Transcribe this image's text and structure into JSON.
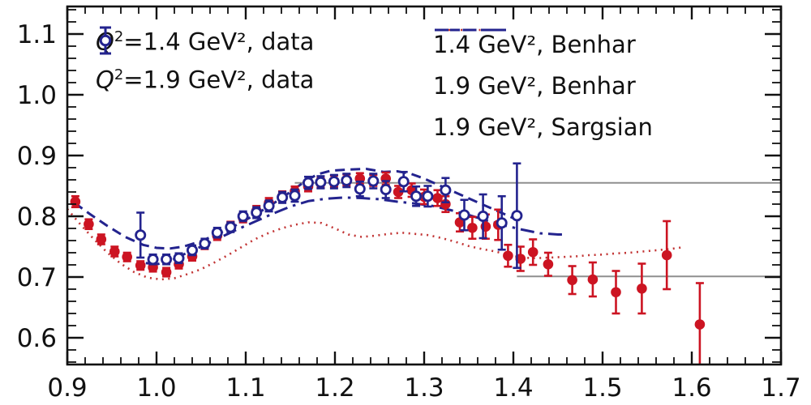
{
  "chart_data": {
    "type": "scatter",
    "title": "",
    "xlabel": "",
    "ylabel": "",
    "grid": false,
    "axes": {
      "xlim": [
        0.9,
        1.7
      ],
      "ylim": [
        0.556,
        1.145
      ],
      "x_tick_values": [
        0.9,
        1.0,
        1.1,
        1.2,
        1.3,
        1.4,
        1.5,
        1.6,
        1.7
      ],
      "x_tick_labels": [
        "0.9",
        "1.0",
        "1.1",
        "1.2",
        "1.3",
        "1.4",
        "1.5",
        "1.6",
        "1.7"
      ],
      "y_tick_values": [
        0.6,
        0.7,
        0.8,
        0.9,
        1.0,
        1.1
      ],
      "y_tick_labels": [
        "0.6",
        "0.7",
        "0.8",
        "0.9",
        "1.0",
        "1.1"
      ],
      "x_minor_step": 0.02,
      "y_minor_step": 0.02
    },
    "colors": {
      "red": "#cc1422",
      "blue": "#23238e",
      "red_dotted": "#c23434",
      "gray": "#8f8f8f",
      "black": "#111111"
    },
    "reference_lines": [
      {
        "y": 0.855,
        "x1": 1.155,
        "x2": 1.7,
        "color": "gray"
      },
      {
        "y": 0.701,
        "x1": 1.404,
        "x2": 1.7,
        "color": "gray"
      }
    ],
    "series": [
      {
        "name": "Q²=1.4 GeV², data",
        "kind": "scatter",
        "marker": "filled-circle",
        "color": "red",
        "points": [
          [
            0.909,
            0.824,
            0.009
          ],
          [
            0.924,
            0.787,
            0.008
          ],
          [
            0.938,
            0.762,
            0.008
          ],
          [
            0.953,
            0.742,
            0.008
          ],
          [
            0.967,
            0.733,
            0.007
          ],
          [
            0.982,
            0.719,
            0.007
          ],
          [
            0.996,
            0.716,
            0.007
          ],
          [
            1.011,
            0.708,
            0.007
          ],
          [
            1.025,
            0.721,
            0.007
          ],
          [
            1.04,
            0.734,
            0.007
          ],
          [
            1.054,
            0.753,
            0.007
          ],
          [
            1.068,
            0.768,
            0.007
          ],
          [
            1.083,
            0.784,
            0.007
          ],
          [
            1.097,
            0.797,
            0.007
          ],
          [
            1.112,
            0.809,
            0.008
          ],
          [
            1.126,
            0.822,
            0.008
          ],
          [
            1.141,
            0.833,
            0.008
          ],
          [
            1.155,
            0.841,
            0.008
          ],
          [
            1.17,
            0.849,
            0.008
          ],
          [
            1.184,
            0.855,
            0.008
          ],
          [
            1.199,
            0.858,
            0.009
          ],
          [
            1.213,
            0.86,
            0.009
          ],
          [
            1.228,
            0.862,
            0.009
          ],
          [
            1.243,
            0.859,
            0.009
          ],
          [
            1.257,
            0.862,
            0.01
          ],
          [
            1.271,
            0.84,
            0.01
          ],
          [
            1.286,
            0.843,
            0.011
          ],
          [
            1.3,
            0.832,
            0.012
          ],
          [
            1.315,
            0.83,
            0.013
          ],
          [
            1.324,
            0.82,
            0.013
          ],
          [
            1.34,
            0.79,
            0.015
          ],
          [
            1.354,
            0.781,
            0.018
          ],
          [
            1.369,
            0.783,
            0.02
          ],
          [
            1.383,
            0.786,
            0.025
          ],
          [
            1.394,
            0.735,
            0.018
          ],
          [
            1.408,
            0.73,
            0.02
          ],
          [
            1.422,
            0.741,
            0.021
          ],
          [
            1.439,
            0.721,
            0.019
          ],
          [
            1.466,
            0.695,
            0.023
          ],
          [
            1.489,
            0.696,
            0.028
          ],
          [
            1.515,
            0.675,
            0.035
          ],
          [
            1.544,
            0.681,
            0.041
          ],
          [
            1.572,
            0.736,
            0.056
          ],
          [
            1.609,
            0.622,
            0.068
          ]
        ]
      },
      {
        "name": "Q²=1.9 GeV², data",
        "kind": "scatter",
        "marker": "open-circle",
        "color": "blue",
        "points": [
          [
            0.982,
            0.769,
            0.037
          ],
          [
            0.996,
            0.729,
            0.008
          ],
          [
            1.011,
            0.729,
            0.008
          ],
          [
            1.025,
            0.731,
            0.008
          ],
          [
            1.04,
            0.744,
            0.008
          ],
          [
            1.054,
            0.755,
            0.008
          ],
          [
            1.068,
            0.773,
            0.008
          ],
          [
            1.083,
            0.782,
            0.008
          ],
          [
            1.097,
            0.8,
            0.008
          ],
          [
            1.112,
            0.806,
            0.009
          ],
          [
            1.126,
            0.817,
            0.009
          ],
          [
            1.141,
            0.831,
            0.009
          ],
          [
            1.155,
            0.834,
            0.01
          ],
          [
            1.17,
            0.855,
            0.01
          ],
          [
            1.184,
            0.856,
            0.01
          ],
          [
            1.199,
            0.857,
            0.011
          ],
          [
            1.213,
            0.859,
            0.011
          ],
          [
            1.228,
            0.845,
            0.012
          ],
          [
            1.243,
            0.858,
            0.012
          ],
          [
            1.257,
            0.844,
            0.014
          ],
          [
            1.277,
            0.857,
            0.016
          ],
          [
            1.291,
            0.833,
            0.016
          ],
          [
            1.304,
            0.833,
            0.017
          ],
          [
            1.324,
            0.843,
            0.02
          ],
          [
            1.345,
            0.802,
            0.025
          ],
          [
            1.366,
            0.8,
            0.036
          ],
          [
            1.387,
            0.789,
            0.044
          ],
          [
            1.404,
            0.801,
            0.086
          ]
        ]
      },
      {
        "name": "1.4 GeV², Benhar",
        "kind": "line",
        "style": "dotted",
        "color": "red_dotted",
        "points": [
          [
            0.9,
            0.812
          ],
          [
            0.915,
            0.786
          ],
          [
            0.93,
            0.762
          ],
          [
            0.945,
            0.74
          ],
          [
            0.96,
            0.722
          ],
          [
            0.975,
            0.708
          ],
          [
            0.99,
            0.699
          ],
          [
            1.005,
            0.696
          ],
          [
            1.02,
            0.698
          ],
          [
            1.035,
            0.705
          ],
          [
            1.05,
            0.713
          ],
          [
            1.065,
            0.724
          ],
          [
            1.08,
            0.736
          ],
          [
            1.095,
            0.749
          ],
          [
            1.11,
            0.762
          ],
          [
            1.125,
            0.772
          ],
          [
            1.14,
            0.78
          ],
          [
            1.155,
            0.786
          ],
          [
            1.17,
            0.79
          ],
          [
            1.185,
            0.789
          ],
          [
            1.2,
            0.78
          ],
          [
            1.215,
            0.77
          ],
          [
            1.23,
            0.766
          ],
          [
            1.245,
            0.768
          ],
          [
            1.26,
            0.771
          ],
          [
            1.275,
            0.773
          ],
          [
            1.29,
            0.771
          ],
          [
            1.305,
            0.769
          ],
          [
            1.32,
            0.764
          ],
          [
            1.335,
            0.758
          ],
          [
            1.35,
            0.751
          ],
          [
            1.365,
            0.746
          ],
          [
            1.38,
            0.742
          ],
          [
            1.395,
            0.736
          ],
          [
            1.41,
            0.732
          ],
          [
            1.425,
            0.731
          ],
          [
            1.44,
            0.732
          ],
          [
            1.455,
            0.733
          ],
          [
            1.47,
            0.734
          ],
          [
            1.485,
            0.736
          ],
          [
            1.5,
            0.737
          ],
          [
            1.515,
            0.739
          ],
          [
            1.53,
            0.74
          ],
          [
            1.545,
            0.742
          ],
          [
            1.56,
            0.744
          ],
          [
            1.575,
            0.746
          ],
          [
            1.59,
            0.749
          ]
        ]
      },
      {
        "name": "1.9 GeV², Benhar",
        "kind": "line",
        "style": "dashdot",
        "color": "blue",
        "points": [
          [
            0.988,
            0.723
          ],
          [
            1.0,
            0.721
          ],
          [
            1.015,
            0.726
          ],
          [
            1.03,
            0.737
          ],
          [
            1.05,
            0.75
          ],
          [
            1.07,
            0.764
          ],
          [
            1.09,
            0.778
          ],
          [
            1.11,
            0.791
          ],
          [
            1.13,
            0.804
          ],
          [
            1.15,
            0.816
          ],
          [
            1.17,
            0.825
          ],
          [
            1.19,
            0.829
          ],
          [
            1.21,
            0.831
          ],
          [
            1.23,
            0.83
          ],
          [
            1.25,
            0.828
          ],
          [
            1.27,
            0.824
          ],
          [
            1.29,
            0.821
          ],
          [
            1.31,
            0.817
          ],
          [
            1.33,
            0.81
          ],
          [
            1.35,
            0.802
          ],
          [
            1.37,
            0.793
          ],
          [
            1.39,
            0.785
          ],
          [
            1.41,
            0.778
          ],
          [
            1.43,
            0.772
          ],
          [
            1.45,
            0.77
          ],
          [
            1.458,
            0.77
          ]
        ]
      },
      {
        "name": "1.9 GeV², Sargsian",
        "kind": "line",
        "style": "dashed",
        "color": "blue",
        "points": [
          [
            0.908,
            0.822
          ],
          [
            0.925,
            0.804
          ],
          [
            0.945,
            0.784
          ],
          [
            0.965,
            0.766
          ],
          [
            0.985,
            0.753
          ],
          [
            1.0,
            0.748
          ],
          [
            1.015,
            0.747
          ],
          [
            1.03,
            0.75
          ],
          [
            1.05,
            0.759
          ],
          [
            1.07,
            0.772
          ],
          [
            1.09,
            0.786
          ],
          [
            1.11,
            0.802
          ],
          [
            1.13,
            0.82
          ],
          [
            1.15,
            0.84
          ],
          [
            1.165,
            0.856
          ],
          [
            1.18,
            0.869
          ],
          [
            1.195,
            0.875
          ],
          [
            1.215,
            0.877
          ],
          [
            1.235,
            0.878
          ],
          [
            1.255,
            0.873
          ],
          [
            1.27,
            0.874
          ],
          [
            1.285,
            0.87
          ],
          [
            1.3,
            0.862
          ],
          [
            1.32,
            0.849
          ],
          [
            1.34,
            0.836
          ],
          [
            1.36,
            0.823
          ],
          [
            1.38,
            0.81
          ],
          [
            1.4,
            0.797
          ],
          [
            1.412,
            0.791
          ]
        ]
      }
    ]
  },
  "legend_left": {
    "items": [
      {
        "prefix": "Q",
        "sup": "2",
        "label": "=1.4 GeV², data",
        "marker": "red-filled-circle-errorbar"
      },
      {
        "prefix": "Q",
        "sup": "2",
        "label": "=1.9 GeV², data",
        "marker": "blue-open-circle-errorbar"
      }
    ]
  },
  "legend_right": {
    "items": [
      {
        "label": "1.4 GeV², Benhar",
        "line": "red-dotted"
      },
      {
        "label": "1.9 GeV², Benhar",
        "line": "blue-dashdot"
      },
      {
        "label": "1.9 GeV², Sargsian",
        "line": "blue-dashed"
      }
    ]
  }
}
